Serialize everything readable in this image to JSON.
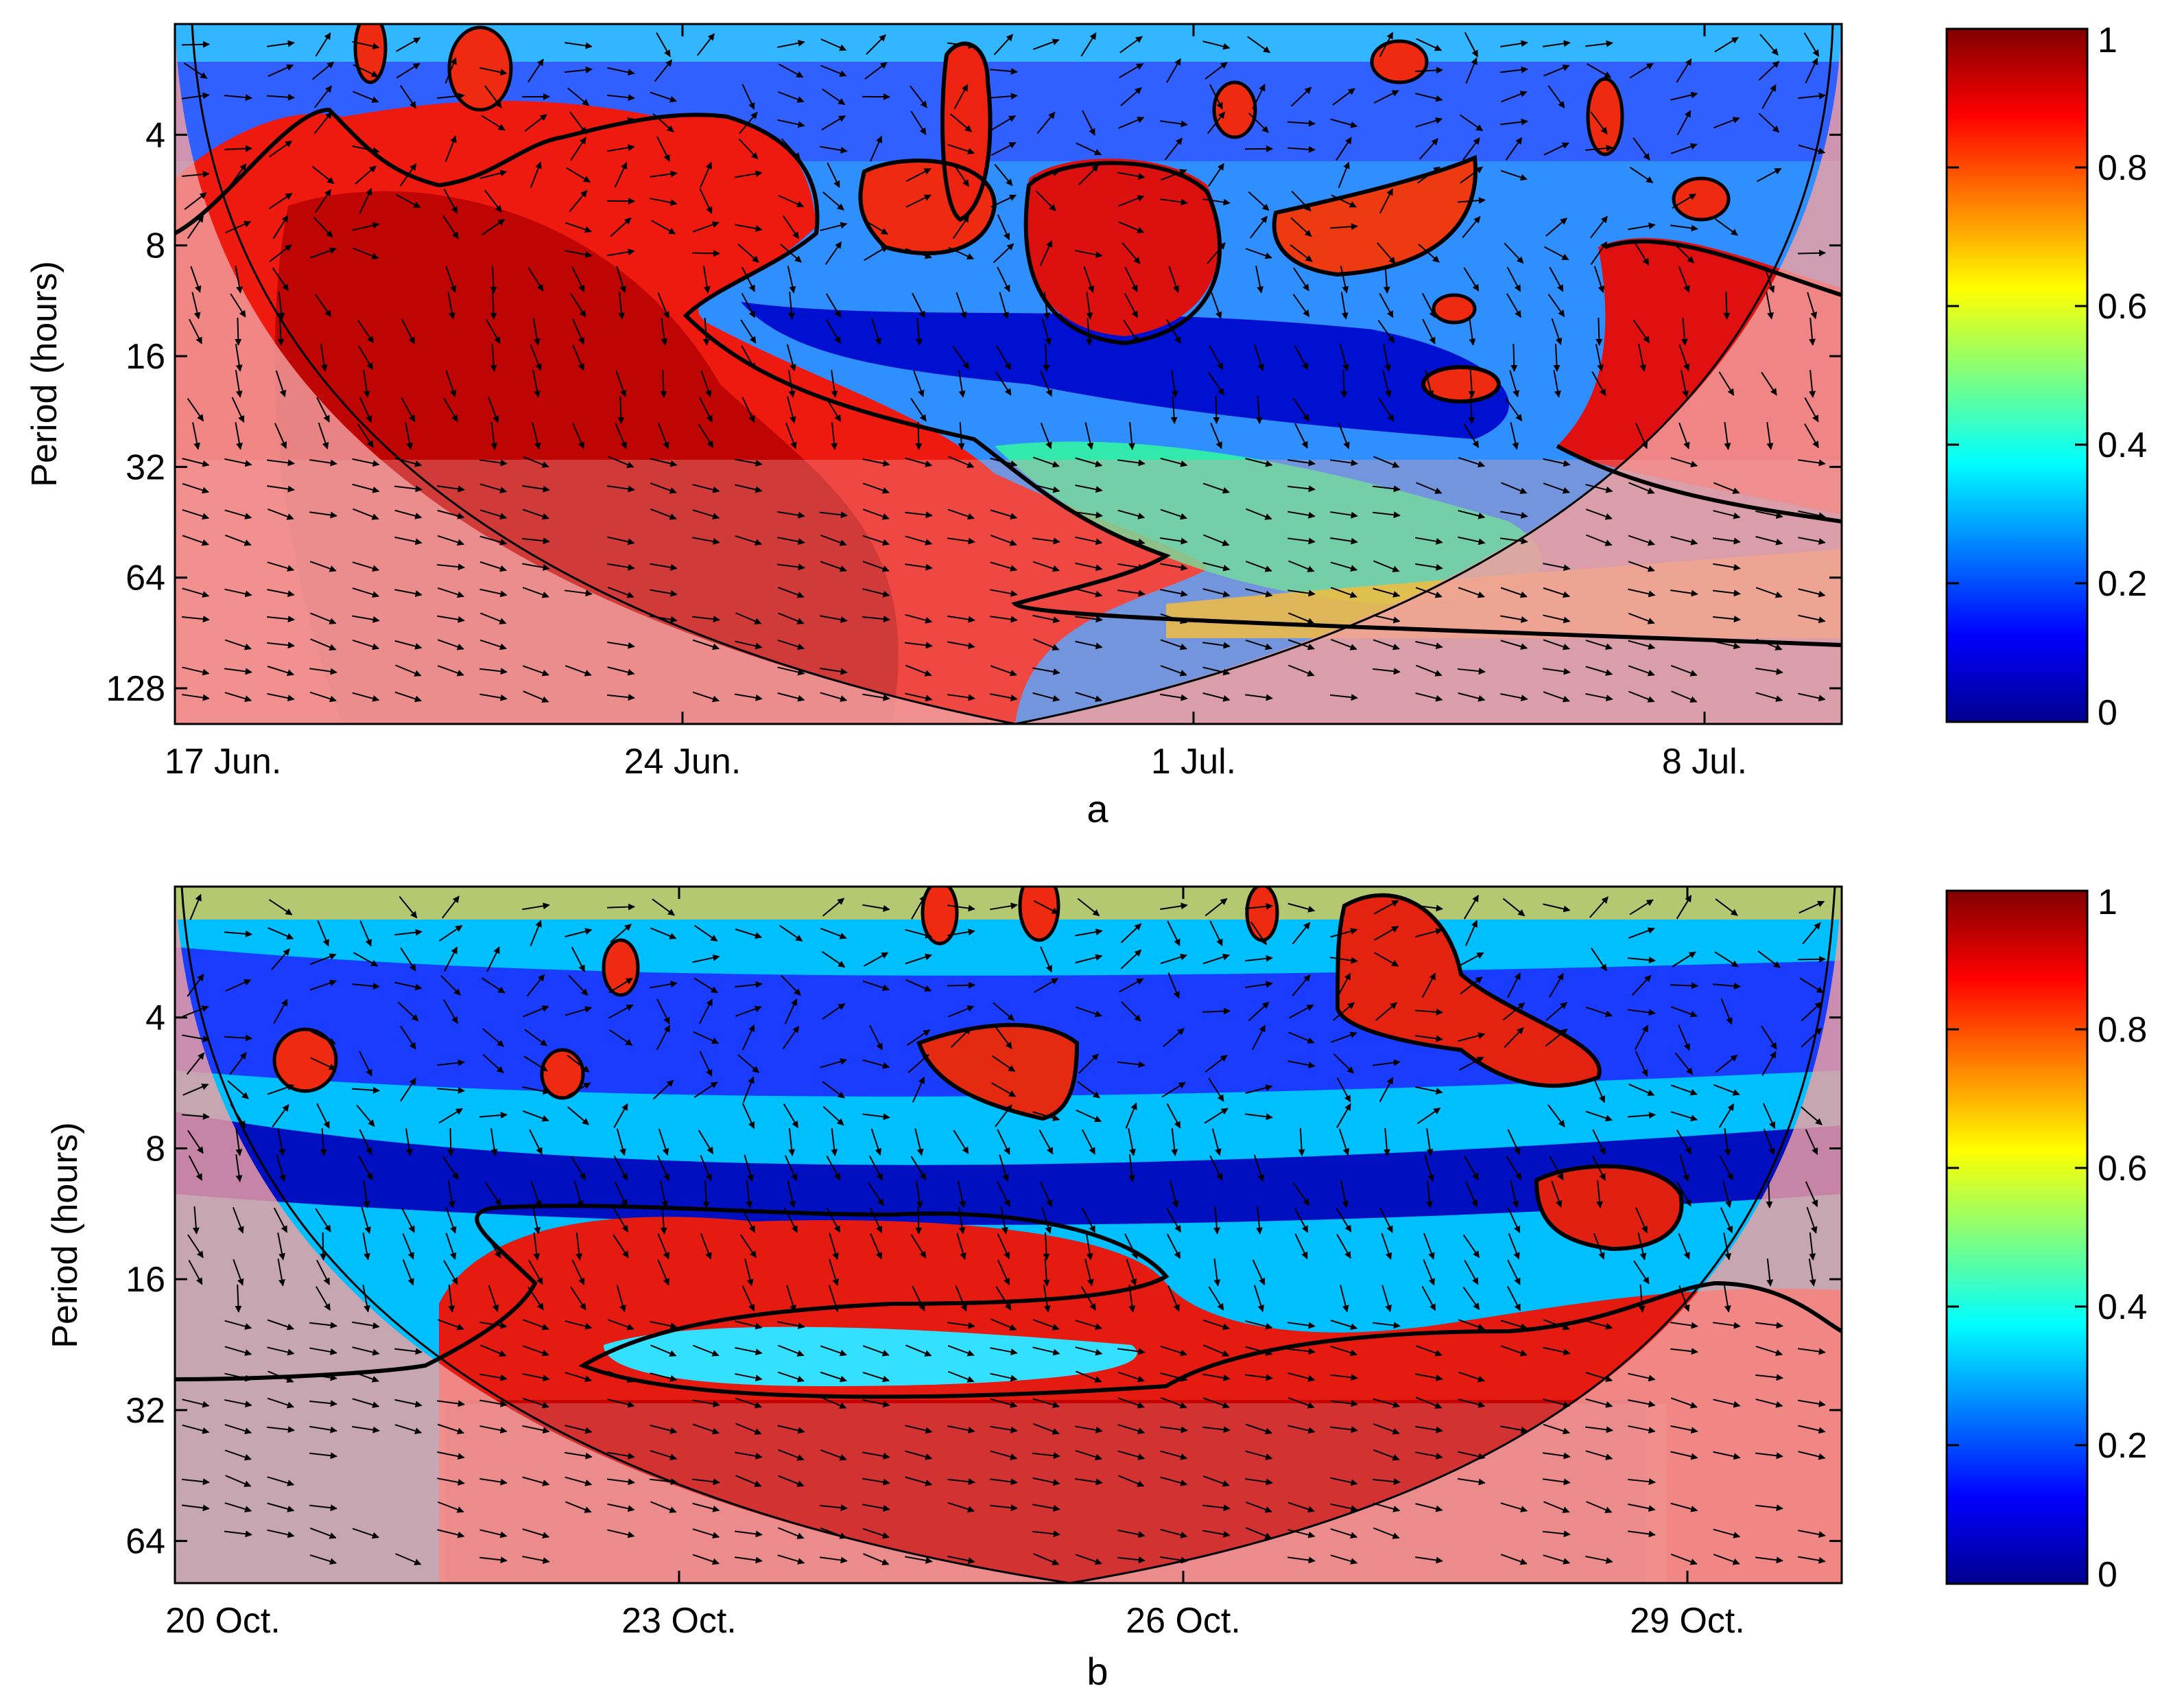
{
  "chart_data": [
    {
      "type": "heatmap",
      "panel_label": "a",
      "ylabel": "Period (hours)",
      "x_tick_labels": [
        "17 Jun.",
        "24 Jun.",
        "1 Jul.",
        "8 Jul."
      ],
      "x_range": [
        "17 Jun.",
        "10 Jul."
      ],
      "y_tick_labels": [
        "4",
        "8",
        "16",
        "32",
        "64",
        "128"
      ],
      "y_ticks": [
        4,
        8,
        16,
        32,
        64,
        128
      ],
      "y_scale": "log2",
      "y_range": [
        2,
        160
      ],
      "y_reversed": true,
      "colormap": "jet",
      "colorbar": {
        "range": [
          0,
          1
        ],
        "tick_labels": [
          "0",
          "0.2",
          "0.4",
          "0.6",
          "0.8",
          "1"
        ],
        "ticks": [
          0,
          0.2,
          0.4,
          0.6,
          0.8,
          1
        ]
      },
      "cone_of_influence": true,
      "phase_arrows": true,
      "significance_contours": true
    },
    {
      "type": "heatmap",
      "panel_label": "b",
      "ylabel": "Period (hours)",
      "x_tick_labels": [
        "20 Oct.",
        "23 Oct.",
        "26 Oct.",
        "29 Oct."
      ],
      "x_range": [
        "20 Oct.",
        "30 Oct."
      ],
      "y_tick_labels": [
        "4",
        "8",
        "16",
        "32",
        "64"
      ],
      "y_ticks": [
        4,
        8,
        16,
        32,
        64
      ],
      "y_scale": "log2",
      "y_range": [
        2,
        80
      ],
      "y_reversed": true,
      "colormap": "jet",
      "colorbar": {
        "range": [
          0,
          1
        ],
        "tick_labels": [
          "0",
          "0.2",
          "0.4",
          "0.6",
          "0.8",
          "1"
        ],
        "ticks": [
          0,
          0.2,
          0.4,
          0.6,
          0.8,
          1
        ]
      },
      "cone_of_influence": true,
      "phase_arrows": true,
      "significance_contours": true
    }
  ],
  "colors": {
    "jet_low": "#00008f",
    "jet_mid": "#7fff7f",
    "jet_high": "#800000",
    "coi_shade": "#f2a0a0"
  }
}
